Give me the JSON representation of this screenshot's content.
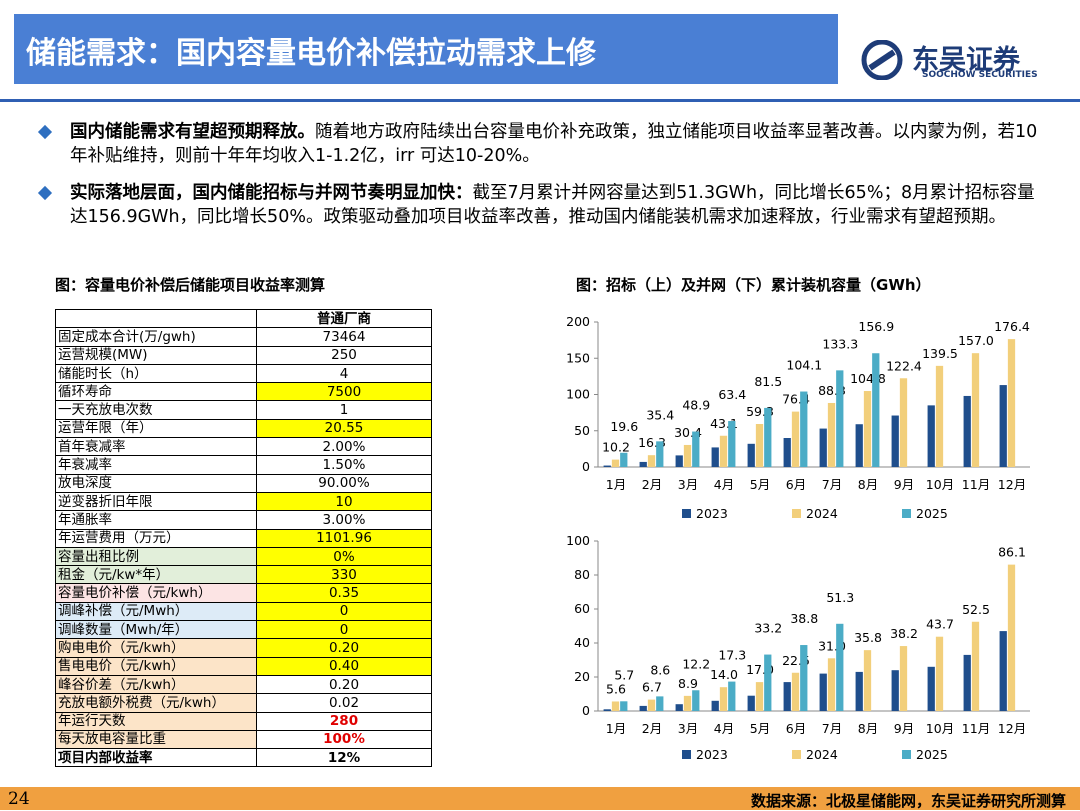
{
  "header": {
    "title": "储能需求：国内容量电价补偿拉动需求上修",
    "logo": "东吴证券",
    "logo_en": "SOOCHOW SECURITIES"
  },
  "bullets": [
    {
      "bold": "国内储能需求有望超预期释放。",
      "text": "随着地方政府陆续出台容量电价补充政策，独立储能项目收益率显著改善。以内蒙为例，若10年补贴维持，则前十年年均收入1-1.2亿，irr 可达10-20%。"
    },
    {
      "bold": "实际落地层面，国内储能招标与并网节奏明显加快：",
      "text": "截至7月累计并网容量达到51.3GWh，同比增长65%；8月累计招标容量达156.9GWh，同比增长50%。政策驱动叠加项目收益率改善，推动国内储能装机需求加速释放，行业需求有望超预期。"
    }
  ],
  "table": {
    "caption": "图：容量电价补偿后储能项目收益率测算",
    "header": "普通厂商",
    "rows": [
      [
        "固定成本合计(万/gwh)",
        "73464"
      ],
      [
        "运营规模(MW)",
        "250"
      ],
      [
        "储能时长（h）",
        "4"
      ],
      [
        "循环寿命",
        "7500"
      ],
      [
        "一天充放电次数",
        "1"
      ],
      [
        "运营年限（年）",
        "20.55"
      ],
      [
        "首年衰减率",
        "2.00%"
      ],
      [
        "年衰减率",
        "1.50%"
      ],
      [
        "放电深度",
        "90.00%"
      ],
      [
        "逆变器折旧年限",
        "10"
      ],
      [
        "年通胀率",
        "3.00%"
      ],
      [
        "年运营费用（万元）",
        "1101.96"
      ],
      [
        "容量出租比例",
        "0%"
      ],
      [
        "租金（元/kw*年）",
        "330"
      ],
      [
        "容量电价补偿（元/kwh）",
        "0.35"
      ],
      [
        "调峰补偿（元/Mwh）",
        "0"
      ],
      [
        "调峰数量（Mwh/年）",
        "0"
      ],
      [
        "购电电价（元/kwh）",
        "0.20"
      ],
      [
        "售电电价（元/kwh）",
        "0.40"
      ],
      [
        "峰谷价差（元/kwh）",
        "0.20"
      ],
      [
        "充放电额外税费（元/kwh）",
        "0.02"
      ],
      [
        "年运行天数",
        "280"
      ],
      [
        "每天放电容量比重",
        "100%"
      ],
      [
        "项目内部收益率",
        "12%"
      ]
    ],
    "label_fills": [
      "#fff",
      "#fff",
      "#fff",
      "#fff",
      "#fff",
      "#fff",
      "#fff",
      "#fff",
      "#fff",
      "#fff",
      "#fff",
      "#fff",
      "#e2efda",
      "#e2efda",
      "#fce4e4",
      "#ddebf7",
      "#ddebf7",
      "#fce4c8",
      "#fce4c8",
      "#fce4c8",
      "#fce4c8",
      "#fce4c8",
      "#fce4c8",
      "#fff"
    ],
    "value_fills": [
      "#fff",
      "#fff",
      "#fff",
      "#ffff00",
      "#fff",
      "#ffff00",
      "#fff",
      "#fff",
      "#fff",
      "#ffff00",
      "#fff",
      "#ffff00",
      "#ffff00",
      "#ffff00",
      "#ffff00",
      "#ffff00",
      "#ffff00",
      "#ffff00",
      "#ffff00",
      "#fff",
      "#fff",
      "#fff",
      "#fff",
      "#fff"
    ]
  },
  "chart_caption": "图：招标（上）及并网（下）累计装机容量（GWh）",
  "chart_data": [
    {
      "type": "bar",
      "categories": [
        "1月",
        "2月",
        "3月",
        "4月",
        "5月",
        "6月",
        "7月",
        "8月",
        "9月",
        "10月",
        "11月",
        "12月"
      ],
      "ylim": [
        0,
        200
      ],
      "yticks": [
        0,
        50,
        100,
        150,
        200
      ],
      "series": [
        {
          "name": "2023",
          "color": "#1f4e8c",
          "values": [
            2,
            7,
            16,
            27,
            32,
            40,
            53,
            59,
            71,
            85,
            98,
            113
          ]
        },
        {
          "name": "2024",
          "color": "#f2cf7b",
          "values": [
            10.2,
            16.3,
            30.4,
            43.1,
            59.3,
            76.4,
            88.3,
            104.8,
            122.4,
            139.5,
            157,
            176.4
          ],
          "value_labels": [
            "10.2",
            "16.3",
            "30.4",
            "43.1",
            "59.3",
            "76.4",
            "88.3",
            "104.8",
            "122.4",
            "139.5",
            "157.0",
            "176.4"
          ]
        },
        {
          "name": "2025",
          "color": "#4bacc6",
          "values": [
            19.6,
            35.4,
            48.9,
            63.4,
            81.5,
            104.1,
            133.3,
            156.9,
            null,
            null,
            null,
            null
          ]
        }
      ]
    },
    {
      "type": "bar",
      "categories": [
        "1月",
        "2月",
        "3月",
        "4月",
        "5月",
        "6月",
        "7月",
        "8月",
        "9月",
        "10月",
        "11月",
        "12月"
      ],
      "ylim": [
        0,
        100
      ],
      "yticks": [
        0,
        20,
        40,
        60,
        80,
        100
      ],
      "series": [
        {
          "name": "2023",
          "color": "#1f4e8c",
          "values": [
            1,
            3,
            4,
            6,
            9,
            17,
            22,
            23,
            24,
            26,
            33,
            47
          ]
        },
        {
          "name": "2024",
          "color": "#f2cf7b",
          "values": [
            5.6,
            6.7,
            8.9,
            14,
            17,
            22.5,
            31,
            35.8,
            38.2,
            43.7,
            52.5,
            86.1
          ],
          "value_labels": [
            "5.6",
            "6.7",
            "8.9",
            "14.0",
            "17.0",
            "22.5",
            "31.0",
            "35.8",
            "38.2",
            "43.7",
            "52.5",
            "86.1"
          ]
        },
        {
          "name": "2025",
          "color": "#4bacc6",
          "values": [
            5.7,
            8.6,
            12.2,
            17.3,
            33.2,
            38.8,
            51.3,
            null,
            null,
            null,
            null,
            null
          ]
        }
      ]
    }
  ],
  "footer": {
    "page": "24",
    "source": "数据来源：北极星储能网，东吴证券研究所测算"
  }
}
